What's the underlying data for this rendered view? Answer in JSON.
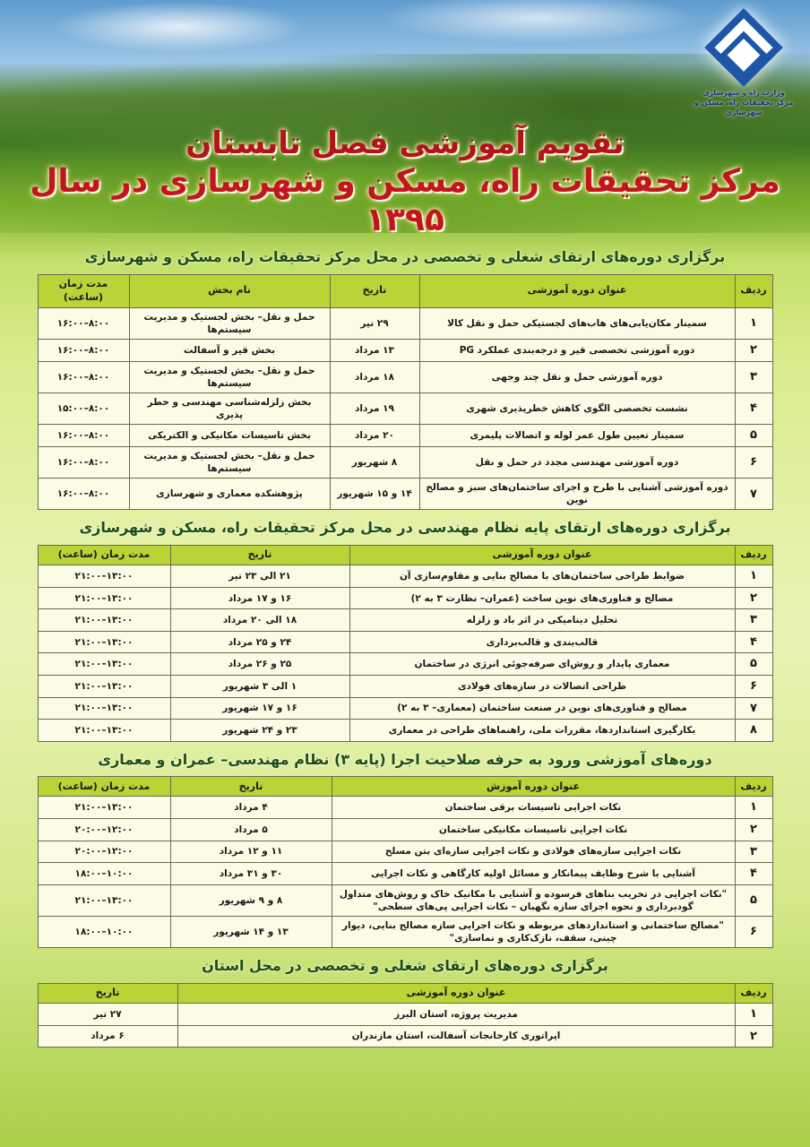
{
  "logo": {
    "line1": "وزارت راه و شهرسازی",
    "line2": "مرکز تحقیقات راه، مسکن و شهرسازی"
  },
  "title": {
    "line1": "تقویم آموزشی فصل تابستان",
    "line2": "مرکز تحقیقات راه، مسکن و شهرسازی در سال ۱۳۹۵"
  },
  "sections": [
    {
      "heading": "برگزاری دوره‌های ارتقای شغلی و تخصصی در محل مرکز تحقیقات راه، مسکن و شهرسازی",
      "headers": [
        "ردیف",
        "عنوان دوره آموزشی",
        "تاریخ",
        "نام بخش",
        "مدت زمان (ساعت)"
      ],
      "rows": [
        [
          "۱",
          "سمینار مکان‌یابی‌های هاب‌های لجستیکی حمل و نقل کالا",
          "۲۹ تیر",
          "حمل و نقل– بخش لجستیک و مدیریت سیستم‌ها",
          "۸:۰۰–۱۶:۰۰"
        ],
        [
          "۲",
          "دوره آموزشی تخصصی قیر و درجه‌بندی عملکرد PG",
          "۱۳ مرداد",
          "بخش قیر و آسفالت",
          "۸:۰۰–۱۶:۰۰"
        ],
        [
          "۳",
          "دوره آموزشی حمل و نقل چند وجهی",
          "۱۸ مرداد",
          "حمل و نقل– بخش لجستیک و مدیریت سیستم‌ها",
          "۸:۰۰–۱۶:۰۰"
        ],
        [
          "۴",
          "نشست تخصصی الگوی کاهش خطرپذیری شهری",
          "۱۹ مرداد",
          "بخش زلزله‌شناسی مهندسی و خطر پذیری",
          "۸:۰۰–۱۵:۰۰"
        ],
        [
          "۵",
          "سمینار تعیین طول عمر لوله و اتصالات پلیمری",
          "۲۰ مرداد",
          "بخش تاسیسات مکانیکی و الکتریکی",
          "۸:۰۰–۱۶:۰۰"
        ],
        [
          "۶",
          "دوره آموزشی مهندسی مجدد در حمل و نقل",
          "۸ شهریور",
          "حمل و نقل– بخش لجستیک و مدیریت سیستم‌ها",
          "۸:۰۰–۱۶:۰۰"
        ],
        [
          "۷",
          "دوره آموزشی آشنایی با طرح و اجرای ساختمان‌های سبز و مصالح نوین",
          "۱۴ و ۱۵ شهریور",
          "پژوهشکده معماری و شهرسازی",
          "۸:۰۰–۱۶:۰۰"
        ]
      ]
    },
    {
      "heading": "برگزاری دوره‌های ارتقای پایه نظام مهندسی در محل مرکز تحقیقات راه، مسکن و شهرسازی",
      "headers": [
        "ردیف",
        "عنوان دوره آموزشی",
        "تاریخ",
        "مدت زمان (ساعت)"
      ],
      "rows": [
        [
          "۱",
          "ضوابط طراحی ساختمان‌های با مصالح بنایی و مقاوم‌سازی آن",
          "۲۱ الی ۲۳ تیر",
          "۱۳:۰۰–۲۱:۰۰"
        ],
        [
          "۲",
          "مصالح و فناوری‌های نوین ساخت (عمران– نظارت ۳ به ۲)",
          "۱۶ و ۱۷ مرداد",
          "۱۳:۰۰–۲۱:۰۰"
        ],
        [
          "۳",
          "تحلیل دینامیکی در اثر باد و زلزله",
          "۱۸ الی ۲۰ مرداد",
          "۱۳:۰۰–۲۱:۰۰"
        ],
        [
          "۴",
          "قالب‌بندی و قالب‌برداری",
          "۲۴ و ۲۵ مرداد",
          "۱۳:۰۰–۲۱:۰۰"
        ],
        [
          "۵",
          "معماری پایدار و روش‌ای صرفه‌جوئی انرژی در ساختمان",
          "۲۵ و ۲۶ مرداد",
          "۱۳:۰۰–۲۱:۰۰"
        ],
        [
          "۶",
          "طراحی اتصالات در سازه‌های فولادی",
          "۱ الی ۳ شهریور",
          "۱۳:۰۰–۲۱:۰۰"
        ],
        [
          "۷",
          "مصالح و فناوری‌های نوین در صنعت ساختمان (معماری– ۳ به ۲)",
          "۱۶ و ۱۷ شهریور",
          "۱۳:۰۰–۲۱:۰۰"
        ],
        [
          "۸",
          "بکارگیری استانداردها، مقررات ملی، راهنماهای طراحی در معماری",
          "۲۳ و ۲۴ شهریور",
          "۱۳:۰۰–۲۱:۰۰"
        ]
      ]
    },
    {
      "heading": "دوره‌های آموزشی ورود به حرفه صلاحیت اجرا (پایه ۳) نظام مهندسی– عمران و معماری",
      "headers": [
        "ردیف",
        "عنوان دوره آموزش",
        "تاریخ",
        "مدت زمان (ساعت)"
      ],
      "rows": [
        [
          "۱",
          "نکات اجرایی تاسیسات برقی ساختمان",
          "۴ مرداد",
          "۱۳:۰۰–۲۱:۰۰"
        ],
        [
          "۲",
          "نکات اجرایی تاسیسات مکانیکی ساختمان",
          "۵ مرداد",
          "۱۲:۰۰–۲۰:۰۰"
        ],
        [
          "۳",
          "نکات اجرایی سازه‌های فولادی و نکات اجرایی سازه‌ای بتن مسلح",
          "۱۱ و ۱۲ مرداد",
          "۱۲:۰۰–۲۰:۰۰"
        ],
        [
          "۴",
          "آشنایی با شرح وظایف پیمانکار و مسائل اولیه کارگاهی و نکات اجرایی",
          "۳۰ و ۳۱ مرداد",
          "۱۰:۰۰–۱۸:۰۰"
        ],
        [
          "۵",
          "\"نکات اجرایی در تخریب بناهای فرسوده و آشنایی با مکانیک خاک و روش‌های متداول گودبرداری و نحوه اجرای سازه نگهبان – نکات اجرایی پی‌های سطحی\"",
          "۸ و ۹ شهریور",
          "۱۳:۰۰–۲۱:۰۰"
        ],
        [
          "۶",
          "\"مصالح ساختمانی و استانداردهای مربوطه و نکات اجرایی سازه مصالح بنایی، دیوار چینی، سقف، نازک‌کاری و نماسازی\"",
          "۱۳ و ۱۴ شهریور",
          "۱۰:۰۰–۱۸:۰۰"
        ]
      ]
    },
    {
      "heading": "برگزاری دوره‌های ارتقای شغلی و تخصصی در محل استان",
      "headers": [
        "ردیف",
        "عنوان دوره آموزشی",
        "تاریخ"
      ],
      "rows": [
        [
          "۱",
          "مدیریت پروژه، استان البرز",
          "۲۷ تیر"
        ],
        [
          "۲",
          "اپراتوری کارخانجات آسفالت، استان مازندران",
          "۶ مرداد"
        ]
      ]
    }
  ]
}
